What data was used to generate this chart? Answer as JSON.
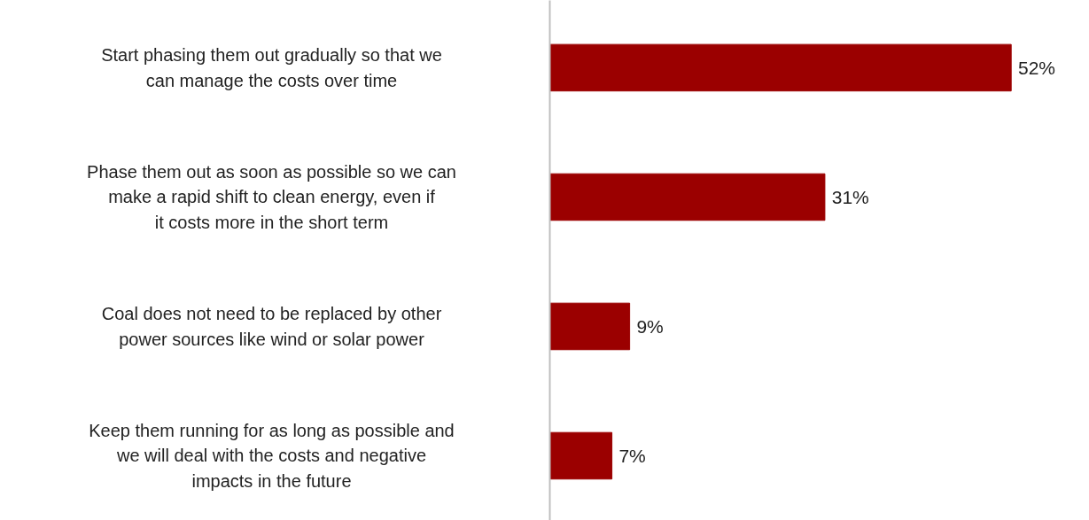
{
  "chart_data": {
    "type": "bar",
    "orientation": "horizontal",
    "categories": [
      "Start phasing them out gradually so that we can manage the costs over time",
      "Phase them out as soon as possible so we can make a rapid shift to clean energy, even if it costs more in the short term",
      "Coal does not need to be replaced by other power sources like wind or solar power",
      "Keep them running for as long as possible and we will deal with the costs and negative impacts in the future"
    ],
    "values": [
      52,
      31,
      9,
      7
    ],
    "value_labels": [
      "52%",
      "31%",
      "9%",
      "7%"
    ],
    "color": "#9b0000"
  }
}
